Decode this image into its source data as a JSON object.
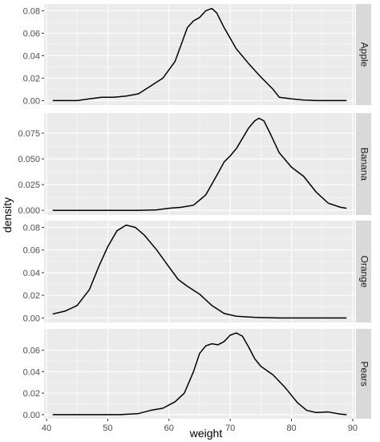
{
  "chart_data": {
    "type": "line",
    "kind": "density",
    "layout": "facet_grid rows, free y scales",
    "xlabel": "weight",
    "ylabel": "density",
    "xlim": [
      39.6,
      90.4
    ],
    "x_ticks": [
      40,
      50,
      60,
      70,
      80,
      90
    ],
    "grid": true,
    "colors": {
      "panel_background": "#ebebeb",
      "grid_major": "#ffffff",
      "strip_background": "#d9d9d9",
      "line": "#000000"
    },
    "panels": [
      {
        "label": "Apple",
        "ylim": [
          -0.004,
          0.086
        ],
        "y_ticks": [
          0.0,
          0.02,
          0.04,
          0.06,
          0.08
        ],
        "y_tick_labels": [
          "0.00",
          "0.02",
          "0.04",
          "0.06",
          "0.08"
        ],
        "points": [
          [
            41,
            0
          ],
          [
            45,
            0
          ],
          [
            47,
            0.0015
          ],
          [
            49,
            0.003
          ],
          [
            51,
            0.003
          ],
          [
            53,
            0.004
          ],
          [
            55,
            0.006
          ],
          [
            57,
            0.013
          ],
          [
            59,
            0.02
          ],
          [
            61,
            0.035
          ],
          [
            62,
            0.05
          ],
          [
            63,
            0.065
          ],
          [
            64,
            0.071
          ],
          [
            65,
            0.074
          ],
          [
            66,
            0.08
          ],
          [
            67,
            0.082
          ],
          [
            67.8,
            0.078
          ],
          [
            69,
            0.065
          ],
          [
            71,
            0.046
          ],
          [
            73,
            0.033
          ],
          [
            75,
            0.021
          ],
          [
            77,
            0.01
          ],
          [
            78,
            0.003
          ],
          [
            80,
            0.0015
          ],
          [
            82,
            0.0005
          ],
          [
            84,
            0
          ],
          [
            89,
            0
          ]
        ]
      },
      {
        "label": "Banana",
        "ylim": [
          -0.0045,
          0.0945
        ],
        "y_ticks": [
          0.0,
          0.025,
          0.05,
          0.075
        ],
        "y_tick_labels": [
          "0.000",
          "0.025",
          "0.050",
          "0.075"
        ],
        "points": [
          [
            41,
            0
          ],
          [
            55,
            0
          ],
          [
            58,
            0.0005
          ],
          [
            60,
            0.002
          ],
          [
            62,
            0.003
          ],
          [
            64,
            0.005
          ],
          [
            66,
            0.015
          ],
          [
            68,
            0.036
          ],
          [
            69,
            0.047
          ],
          [
            70,
            0.053
          ],
          [
            71,
            0.06
          ],
          [
            72,
            0.07
          ],
          [
            73,
            0.08
          ],
          [
            74,
            0.087
          ],
          [
            74.7,
            0.0895
          ],
          [
            75.5,
            0.087
          ],
          [
            76.5,
            0.075
          ],
          [
            78,
            0.056
          ],
          [
            80,
            0.042
          ],
          [
            82,
            0.033
          ],
          [
            84,
            0.018
          ],
          [
            86,
            0.007
          ],
          [
            88,
            0.003
          ],
          [
            89,
            0.002
          ]
        ]
      },
      {
        "label": "Orange",
        "ylim": [
          -0.004,
          0.086
        ],
        "y_ticks": [
          0.0,
          0.02,
          0.04,
          0.06,
          0.08
        ],
        "y_tick_labels": [
          "0.00",
          "0.02",
          "0.04",
          "0.06",
          "0.08"
        ],
        "points": [
          [
            41,
            0.0035
          ],
          [
            43,
            0.006
          ],
          [
            45,
            0.011
          ],
          [
            47,
            0.025
          ],
          [
            48.5,
            0.045
          ],
          [
            50,
            0.063
          ],
          [
            51.5,
            0.077
          ],
          [
            53,
            0.082
          ],
          [
            54.5,
            0.08
          ],
          [
            56,
            0.073
          ],
          [
            58,
            0.06
          ],
          [
            60,
            0.045
          ],
          [
            61.5,
            0.034
          ],
          [
            63,
            0.028
          ],
          [
            65,
            0.021
          ],
          [
            67,
            0.011
          ],
          [
            69,
            0.004
          ],
          [
            71,
            0.0015
          ],
          [
            74,
            0.0005
          ],
          [
            78,
            0
          ],
          [
            89,
            0
          ]
        ]
      },
      {
        "label": "Pears",
        "ylim": [
          -0.0038,
          0.0798
        ],
        "y_ticks": [
          0.0,
          0.02,
          0.04,
          0.06
        ],
        "y_tick_labels": [
          "0.00",
          "0.02",
          "0.04",
          "0.06"
        ],
        "points": [
          [
            41,
            0
          ],
          [
            52,
            0
          ],
          [
            55,
            0.001
          ],
          [
            57,
            0.004
          ],
          [
            59,
            0.006
          ],
          [
            61,
            0.012
          ],
          [
            62.5,
            0.02
          ],
          [
            64,
            0.04
          ],
          [
            65,
            0.057
          ],
          [
            66,
            0.064
          ],
          [
            67,
            0.066
          ],
          [
            68,
            0.065
          ],
          [
            69,
            0.068
          ],
          [
            70,
            0.074
          ],
          [
            71,
            0.076
          ],
          [
            72,
            0.073
          ],
          [
            73,
            0.063
          ],
          [
            74,
            0.052
          ],
          [
            75,
            0.045
          ],
          [
            77,
            0.037
          ],
          [
            79,
            0.025
          ],
          [
            81,
            0.011
          ],
          [
            82.5,
            0.004
          ],
          [
            84,
            0.002
          ],
          [
            86,
            0.0025
          ],
          [
            88,
            0.0005
          ],
          [
            89,
            0
          ]
        ]
      }
    ]
  }
}
